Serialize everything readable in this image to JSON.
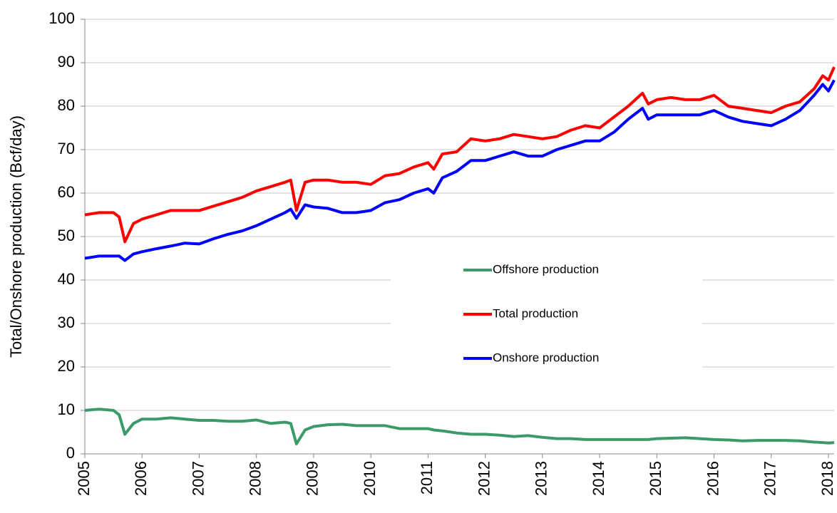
{
  "chart_data": {
    "type": "line",
    "y_label": "Total/Onshore production (Bcf/day)",
    "x": [
      2005.0,
      2005.25,
      2005.5,
      2005.6,
      2005.7,
      2005.85,
      2006.0,
      2006.25,
      2006.5,
      2006.75,
      2007.0,
      2007.25,
      2007.5,
      2007.75,
      2008.0,
      2008.25,
      2008.5,
      2008.6,
      2008.7,
      2008.85,
      2009.0,
      2009.25,
      2009.5,
      2009.75,
      2010.0,
      2010.25,
      2010.5,
      2010.75,
      2011.0,
      2011.1,
      2011.25,
      2011.5,
      2011.75,
      2012.0,
      2012.25,
      2012.5,
      2012.75,
      2013.0,
      2013.25,
      2013.5,
      2013.75,
      2014.0,
      2014.25,
      2014.5,
      2014.75,
      2014.85,
      2015.0,
      2015.25,
      2015.5,
      2015.75,
      2016.0,
      2016.25,
      2016.5,
      2016.75,
      2017.0,
      2017.25,
      2017.5,
      2017.75,
      2017.9,
      2018.0,
      2018.1
    ],
    "series": [
      {
        "name": "Offshore production",
        "color": "#3a9a68",
        "values": [
          10,
          10.3,
          10,
          9,
          4.5,
          7,
          8,
          8,
          8.3,
          8,
          7.7,
          7.7,
          7.5,
          7.5,
          7.8,
          7,
          7.3,
          7,
          2.3,
          5.5,
          6.3,
          6.7,
          6.8,
          6.5,
          6.5,
          6.5,
          5.8,
          5.8,
          5.8,
          5.5,
          5.3,
          4.8,
          4.5,
          4.5,
          4.3,
          4,
          4.2,
          3.8,
          3.5,
          3.5,
          3.3,
          3.3,
          3.3,
          3.3,
          3.3,
          3.3,
          3.5,
          3.6,
          3.7,
          3.5,
          3.3,
          3.2,
          3,
          3.1,
          3.1,
          3.1,
          3,
          2.7,
          2.6,
          2.5,
          2.6
        ]
      },
      {
        "name": "Total production",
        "color": "#ff0000",
        "values": [
          55,
          55.5,
          55.5,
          54.5,
          48.8,
          53,
          54,
          55,
          56,
          56,
          56,
          57,
          58,
          59,
          60.5,
          61.5,
          62.5,
          63,
          56,
          62.5,
          63,
          63,
          62.5,
          62.5,
          62,
          64,
          64.5,
          66,
          67,
          65.5,
          69,
          69.5,
          72.5,
          72,
          72.5,
          73.5,
          73,
          72.5,
          73,
          74.5,
          75.5,
          75,
          77.5,
          80,
          83,
          80.5,
          81.5,
          82,
          81.5,
          81.5,
          82.5,
          80,
          79.5,
          79,
          78.5,
          80,
          81,
          84,
          87,
          86,
          89
        ]
      },
      {
        "name": "Onshore production",
        "color": "#0000ff",
        "values": [
          45,
          45.5,
          45.5,
          45.5,
          44.5,
          46,
          46.5,
          47.2,
          47.8,
          48.5,
          48.3,
          49.5,
          50.5,
          51.3,
          52.5,
          54,
          55.5,
          56.3,
          54.2,
          57.3,
          56.8,
          56.5,
          55.5,
          55.5,
          56,
          57.8,
          58.5,
          60,
          61,
          60,
          63.5,
          65,
          67.5,
          67.5,
          68.5,
          69.5,
          68.5,
          68.5,
          70,
          71,
          72,
          72,
          74,
          77,
          79.5,
          77,
          78,
          78,
          78,
          78,
          79,
          77.5,
          76.5,
          76,
          75.5,
          77,
          79,
          82.5,
          85,
          83.5,
          86
        ]
      }
    ],
    "xlim": [
      2005,
      2018.1
    ],
    "xticks": [
      2005,
      2006,
      2007,
      2008,
      2009,
      2010,
      2011,
      2012,
      2013,
      2014,
      2015,
      2016,
      2017,
      2018
    ],
    "ylim": [
      0,
      100
    ],
    "yticks": [
      0,
      10,
      20,
      30,
      40,
      50,
      60,
      70,
      80,
      90,
      100
    ],
    "grid": true
  }
}
